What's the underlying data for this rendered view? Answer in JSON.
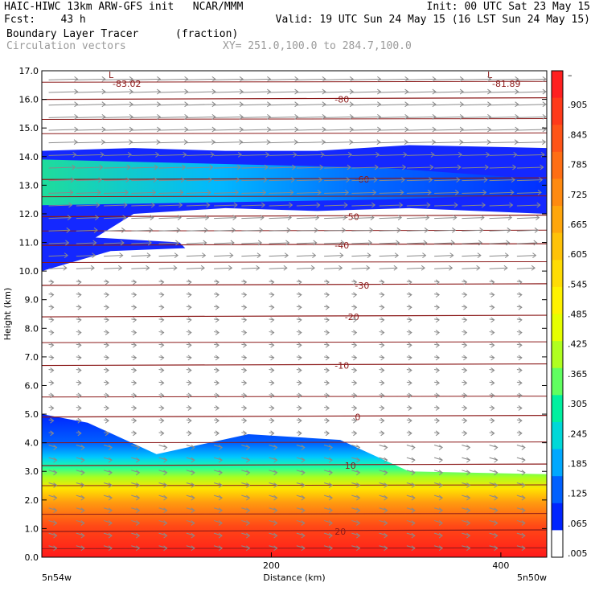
{
  "header": {
    "left_line1": "HAIC-HIWC 13km ARW-GFS init   NCAR/MMM",
    "left_line2": "Fcst:    43 h",
    "right_line1": "Init: 00 UTC Sat 23 May 15",
    "right_line2": "Valid: 19 UTC Sun 24 May 15 (16 LST Sun 24 May 15)",
    "field_label": "Boundary Layer Tracer",
    "field_units": "(fraction)",
    "vector_label": "Circulation vectors",
    "xy_label": "XY= 251.0,100.0 to 284.7,100.0"
  },
  "chart_data": {
    "type": "heatmap",
    "title": "Boundary Layer Tracer",
    "xlabel": "Distance (km)",
    "ylabel": "Height (km)",
    "xlim": [
      0,
      440
    ],
    "ylim": [
      0,
      17
    ],
    "x_ticks": [
      "200",
      "400"
    ],
    "x_tick_values": [
      200,
      400
    ],
    "x_endpoint_labels": [
      "5n54w",
      "5n50w"
    ],
    "y_ticks": [
      "0.0",
      "1.0",
      "2.0",
      "3.0",
      "4.0",
      "5.0",
      "6.0",
      "7.0",
      "8.0",
      "9.0",
      "10.0",
      "11.0",
      "12.0",
      "13.0",
      "14.0",
      "15.0",
      "16.0",
      "17.0"
    ],
    "colorbar_labels": [
      "–",
      ".905",
      ".845",
      ".785",
      ".725",
      ".665",
      ".605",
      ".545",
      ".485",
      ".425",
      ".365",
      ".305",
      ".245",
      ".185",
      ".125",
      ".065",
      ".005"
    ],
    "colorbar_colors": [
      "#ff2020",
      "#ff3a1a",
      "#ff5418",
      "#ff6e14",
      "#ff8a10",
      "#ffa60c",
      "#ffc208",
      "#ffdc04",
      "#fff200",
      "#e6ff00",
      "#b0ff20",
      "#60ff60",
      "#00f0a0",
      "#00d8d8",
      "#00a8ff",
      "#0060ff",
      "#0024ff",
      "#ffffff"
    ],
    "temperature_contours": [
      {
        "label": "20",
        "height_km": 0.9
      },
      {
        "label": "10",
        "height_km": 3.2
      },
      {
        "label": "0",
        "height_km": 4.9
      },
      {
        "label": "-10",
        "height_km": 6.7
      },
      {
        "label": "-20",
        "height_km": 8.4
      },
      {
        "label": "-30",
        "height_km": 9.5
      },
      {
        "label": "-40",
        "height_km": 10.9
      },
      {
        "label": "-50",
        "height_km": 11.9
      },
      {
        "label": "-60",
        "height_km": 13.2
      },
      {
        "label": "-80",
        "height_km": 16.0
      }
    ],
    "annotations": [
      "L",
      "-83.02",
      "L",
      "-81.89"
    ],
    "tracer_layers": [
      {
        "name": "upper plume",
        "top_km": [
          14.2,
          14.3,
          14.2,
          14.2,
          14.4,
          14.3
        ],
        "bottom_km": [
          10.0,
          12.0,
          12.2,
          12.1,
          12.2,
          12.0
        ],
        "x": [
          0,
          80,
          160,
          240,
          320,
          440
        ]
      },
      {
        "name": "boundary layer",
        "top_km": [
          5.0,
          4.7,
          3.6,
          4.3,
          4.1,
          3.0,
          2.9
        ],
        "x": [
          0,
          40,
          100,
          180,
          260,
          320,
          440
        ]
      }
    ]
  },
  "colors": {
    "contour": "#8b1a1a",
    "vector": "#8a8a8a",
    "frame": "#000000"
  }
}
